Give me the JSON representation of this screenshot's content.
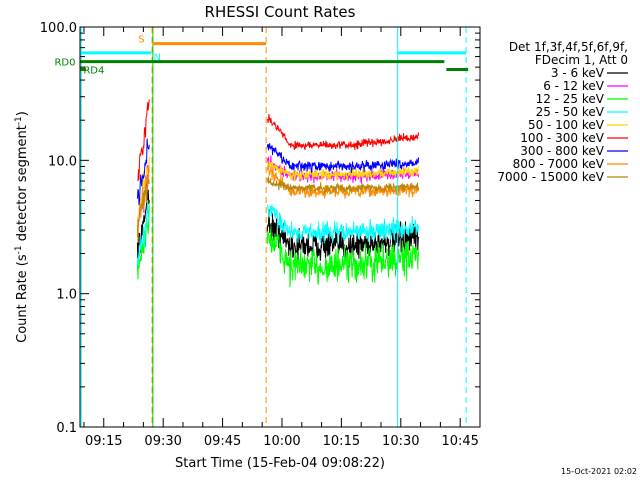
{
  "chart_data": {
    "type": "line",
    "title": "RHESSI Count Rates",
    "xlabel": "Start Time (15-Feb-04 09:08:22)",
    "ylabel_parts": [
      "Count Rate (s",
      "-1",
      " detector segment",
      "-1",
      ")"
    ],
    "yscale": "log",
    "ylim": [
      0.1,
      100
    ],
    "xlim_minutes": [
      9.0,
      110.0
    ],
    "y_ticks": [
      {
        "value": 0.1,
        "label": "0.1"
      },
      {
        "value": 1.0,
        "label": "1.0"
      },
      {
        "value": 10.0,
        "label": "10.0"
      },
      {
        "value": 100.0,
        "label": "100.0"
      }
    ],
    "x_ticks": [
      {
        "minute": 15,
        "label": "09:15"
      },
      {
        "minute": 30,
        "label": "09:30"
      },
      {
        "minute": 45,
        "label": "09:45"
      },
      {
        "minute": 60,
        "label": "10:00"
      },
      {
        "minute": 75,
        "label": "10:15"
      },
      {
        "minute": 90,
        "label": "10:30"
      },
      {
        "minute": 105,
        "label": "10:45"
      }
    ],
    "legend": {
      "header": [
        "Det 1f,3f,4f,5f,6f,9f,",
        "FDecim 1, Att 0"
      ],
      "position": "right"
    },
    "series": [
      {
        "name": "3 - 6 keV",
        "color": "#000000",
        "seg1": [
          2.2,
          3.0,
          6.0
        ],
        "seg2": {
          "start": 3.4,
          "valley": 2.3,
          "end": 2.6,
          "noise": 0.18
        }
      },
      {
        "name": "6 - 12 keV",
        "color": "#ff00ff",
        "seg1": [
          3.0,
          5.0,
          8.5
        ],
        "seg2": {
          "start": 10.0,
          "valley": 7.6,
          "end": 8.0,
          "noise": 0.07
        }
      },
      {
        "name": "12 - 25 keV",
        "color": "#00ff00",
        "seg1": [
          1.4,
          2.2,
          4.0
        ],
        "seg2": {
          "start": 2.7,
          "valley": 1.6,
          "end": 1.9,
          "noise": 0.22
        }
      },
      {
        "name": "25 - 50 keV",
        "color": "#00ffff",
        "seg1": [
          1.6,
          2.5,
          4.2
        ],
        "seg2": {
          "start": 4.4,
          "valley": 2.9,
          "end": 3.1,
          "noise": 0.12
        }
      },
      {
        "name": "50 - 100 keV",
        "color": "#ffd700",
        "seg1": [
          3.5,
          6.0,
          9.0
        ],
        "seg2": {
          "start": 9.5,
          "valley": 7.8,
          "end": 8.3,
          "noise": 0.06
        }
      },
      {
        "name": "100 - 300 keV",
        "color": "#ff0000",
        "seg1": [
          8.0,
          14.0,
          27.0
        ],
        "seg2": {
          "start": 21.0,
          "valley": 13.0,
          "end": 15.0,
          "noise": 0.05
        }
      },
      {
        "name": "300 - 800 keV",
        "color": "#0000ff",
        "seg1": [
          5.0,
          8.0,
          14.0
        ],
        "seg2": {
          "start": 13.0,
          "valley": 9.0,
          "end": 9.6,
          "noise": 0.06
        }
      },
      {
        "name": "800 - 7000 keV",
        "color": "#ff8c00",
        "seg1": [
          3.0,
          5.5,
          8.0
        ],
        "seg2": {
          "start": 8.5,
          "valley": 5.8,
          "end": 6.0,
          "noise": 0.07
        }
      },
      {
        "name": "7000 - 15000 keV",
        "color": "#b8860b",
        "seg1": [
          3.0,
          5.0,
          7.5
        ],
        "seg2": {
          "start": 7.0,
          "valley": 6.2,
          "end": 6.3,
          "noise": 0.05
        }
      }
    ],
    "segments_minutes": {
      "seg1": [
        23.5,
        26.5
      ],
      "seg2": [
        56.3,
        94.5
      ]
    },
    "markers": [
      {
        "minute": 9.3,
        "color": "#00ffff",
        "style": "solid"
      },
      {
        "minute": 27.2,
        "color": "#ff8c00",
        "style": "dashed"
      },
      {
        "minute": 27.4,
        "color": "#00cc00",
        "style": "solid"
      },
      {
        "minute": 56.0,
        "color": "#ff8c00",
        "style": "dashed"
      },
      {
        "minute": 89.2,
        "color": "#00ffff",
        "style": "solid"
      },
      {
        "minute": 106.5,
        "color": "#00ffff",
        "style": "dashed"
      }
    ],
    "flag_bars": [
      {
        "label": "N",
        "color": "#00ffff",
        "ranges": [
          [
            9.0,
            27.0
          ],
          [
            89.2,
            106.5
          ]
        ],
        "level": 64,
        "label_at": 28.5,
        "label_level": 60
      },
      {
        "label": "S",
        "color": "#ff8c00",
        "ranges": [
          [
            27.3,
            56.0
          ]
        ],
        "level": 75,
        "label_at": 24.5,
        "label_level": 82
      },
      {
        "label": "RD0",
        "color": "#008000",
        "ranges": [
          [
            9.0,
            101.0
          ]
        ],
        "level": 55,
        "label_at": 5.2,
        "label_level": 55
      },
      {
        "label": "RD4",
        "color": "#008000",
        "ranges": [
          [
            9.0,
            10.5
          ],
          [
            101.5,
            107.0
          ]
        ],
        "level": 48,
        "label_at": 12.5,
        "label_level": 48
      }
    ]
  },
  "footer": {
    "timestamp": "15-Oct-2021 02:02"
  }
}
